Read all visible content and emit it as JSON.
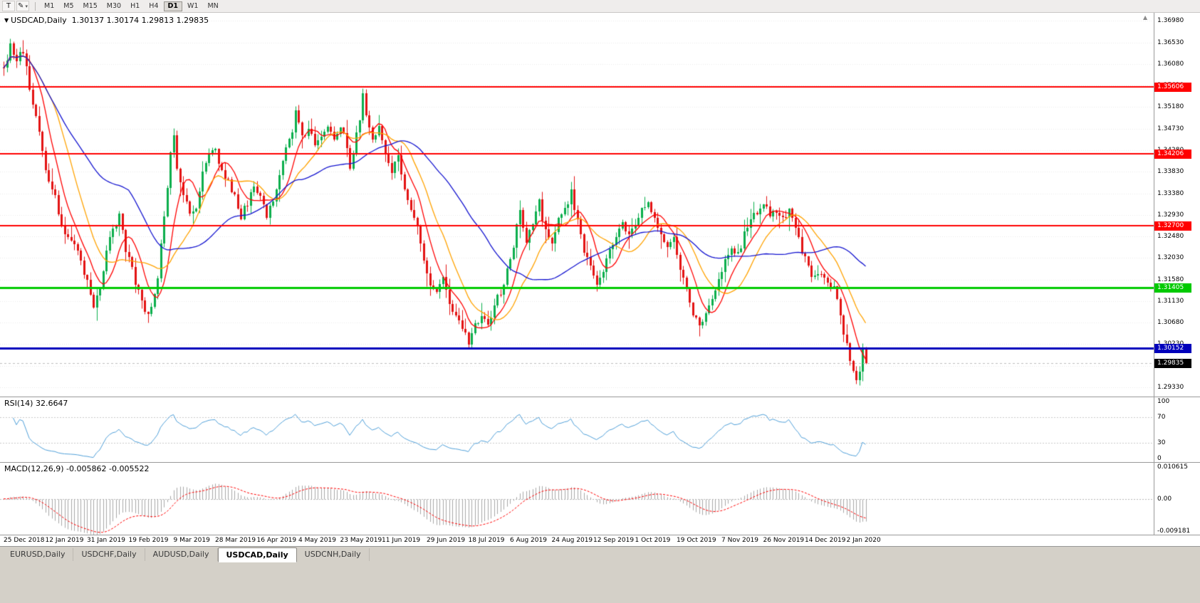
{
  "toolbar": {
    "text_tool_label": "T",
    "draw_tool_icon": "pencil-icon",
    "timeframes": [
      "M1",
      "M5",
      "M15",
      "M30",
      "H1",
      "H4",
      "D1",
      "W1",
      "MN"
    ],
    "active_timeframe": "D1"
  },
  "panes": {
    "price_title_symbol": "USDCAD,Daily",
    "price_title_ohlc": "1.30137 1.30174 1.29813 1.29835",
    "rsi_title": "RSI(14) 32.6647",
    "macd_title": "MACD(12,26,9) -0.005862 -0.005522"
  },
  "tabs": [
    {
      "label": "EURUSD,Daily",
      "active": false
    },
    {
      "label": "USDCHF,Daily",
      "active": false
    },
    {
      "label": "AUDUSD,Daily",
      "active": false
    },
    {
      "label": "USDCAD,Daily",
      "active": true
    },
    {
      "label": "USDCNH,Daily",
      "active": false
    }
  ],
  "chart_data": {
    "type": "candlestick",
    "title": "USDCAD,Daily",
    "ohlc_display": {
      "open": "1.30137",
      "high": "1.30174",
      "low": "1.29813",
      "close": "1.29835"
    },
    "bars": 270,
    "bar_spacing_px": 4.5,
    "first_bar_x": 5,
    "seed": 11,
    "y_range": [
      1.2912,
      1.3715
    ],
    "y_ticks": [
      "1.36980",
      "1.36530",
      "1.36080",
      "1.35630",
      "1.35180",
      "1.34730",
      "1.34280",
      "1.33830",
      "1.33380",
      "1.32930",
      "1.32480",
      "1.32030",
      "1.31580",
      "1.31130",
      "1.30680",
      "1.30230",
      "1.29780",
      "1.29330"
    ],
    "x_labels": [
      "25 Dec 2018",
      "12 Jan 2019",
      "31 Jan 2019",
      "19 Feb 2019",
      "9 Mar 2019",
      "28 Mar 2019",
      "16 Apr 2019",
      "4 May 2019",
      "23 May 2019",
      "11 Jun 2019",
      "29 Jun 2019",
      "18 Jul 2019",
      "6 Aug 2019",
      "24 Aug 2019",
      "12 Sep 2019",
      "1 Oct 2019",
      "19 Oct 2019",
      "7 Nov 2019",
      "26 Nov 2019",
      "14 Dec 2019",
      "2 Jan 2020"
    ],
    "up_color": "#0bae4c",
    "down_color": "#e31212",
    "close_anchors": [
      [
        0,
        1.36
      ],
      [
        2,
        1.3645
      ],
      [
        4,
        1.362
      ],
      [
        6,
        1.3638
      ],
      [
        8,
        1.356
      ],
      [
        11,
        1.3468
      ],
      [
        13,
        1.339
      ],
      [
        16,
        1.3328
      ],
      [
        19,
        1.3252
      ],
      [
        22,
        1.323
      ],
      [
        24,
        1.3198
      ],
      [
        26,
        1.315
      ],
      [
        28,
        1.31
      ],
      [
        30,
        1.3132
      ],
      [
        32,
        1.3222
      ],
      [
        34,
        1.3268
      ],
      [
        36,
        1.329
      ],
      [
        38,
        1.3222
      ],
      [
        40,
        1.318
      ],
      [
        42,
        1.313
      ],
      [
        44,
        1.3082
      ],
      [
        46,
        1.31
      ],
      [
        48,
        1.3162
      ],
      [
        50,
        1.329
      ],
      [
        52,
        1.342
      ],
      [
        53,
        1.3458
      ],
      [
        54,
        1.3382
      ],
      [
        56,
        1.334
      ],
      [
        58,
        1.3292
      ],
      [
        60,
        1.3312
      ],
      [
        62,
        1.338
      ],
      [
        64,
        1.342
      ],
      [
        66,
        1.3432
      ],
      [
        68,
        1.338
      ],
      [
        70,
        1.336
      ],
      [
        72,
        1.333
      ],
      [
        74,
        1.3292
      ],
      [
        76,
        1.332
      ],
      [
        78,
        1.335
      ],
      [
        80,
        1.333
      ],
      [
        82,
        1.3292
      ],
      [
        84,
        1.332
      ],
      [
        86,
        1.338
      ],
      [
        88,
        1.344
      ],
      [
        90,
        1.3472
      ],
      [
        91,
        1.3508
      ],
      [
        93,
        1.3452
      ],
      [
        95,
        1.347
      ],
      [
        97,
        1.3442
      ],
      [
        99,
        1.3462
      ],
      [
        101,
        1.3472
      ],
      [
        103,
        1.3452
      ],
      [
        105,
        1.348
      ],
      [
        107,
        1.344
      ],
      [
        108,
        1.3388
      ],
      [
        109,
        1.3428
      ],
      [
        111,
        1.349
      ],
      [
        112,
        1.3542
      ],
      [
        113,
        1.35
      ],
      [
        115,
        1.3452
      ],
      [
        117,
        1.348
      ],
      [
        119,
        1.342
      ],
      [
        121,
        1.3382
      ],
      [
        123,
        1.342
      ],
      [
        125,
        1.3352
      ],
      [
        127,
        1.33
      ],
      [
        129,
        1.327
      ],
      [
        131,
        1.32
      ],
      [
        133,
        1.315
      ],
      [
        135,
        1.313
      ],
      [
        137,
        1.316
      ],
      [
        139,
        1.311
      ],
      [
        141,
        1.308
      ],
      [
        143,
        1.306
      ],
      [
        145,
        1.3028
      ],
      [
        147,
        1.3058
      ],
      [
        149,
        1.308
      ],
      [
        151,
        1.306
      ],
      [
        153,
        1.311
      ],
      [
        155,
        1.313
      ],
      [
        157,
        1.318
      ],
      [
        159,
        1.323
      ],
      [
        161,
        1.33
      ],
      [
        163,
        1.3242
      ],
      [
        165,
        1.328
      ],
      [
        167,
        1.3318
      ],
      [
        169,
        1.326
      ],
      [
        171,
        1.323
      ],
      [
        173,
        1.328
      ],
      [
        175,
        1.33
      ],
      [
        177,
        1.334
      ],
      [
        179,
        1.328
      ],
      [
        181,
        1.322
      ],
      [
        183,
        1.318
      ],
      [
        185,
        1.315
      ],
      [
        187,
        1.318
      ],
      [
        189,
        1.322
      ],
      [
        191,
        1.325
      ],
      [
        193,
        1.328
      ],
      [
        195,
        1.325
      ],
      [
        197,
        1.328
      ],
      [
        199,
        1.33
      ],
      [
        201,
        1.332
      ],
      [
        203,
        1.329
      ],
      [
        205,
        1.325
      ],
      [
        207,
        1.322
      ],
      [
        209,
        1.324
      ],
      [
        211,
        1.318
      ],
      [
        213,
        1.313
      ],
      [
        215,
        1.309
      ],
      [
        217,
        1.3058
      ],
      [
        219,
        1.308
      ],
      [
        221,
        1.312
      ],
      [
        223,
        1.316
      ],
      [
        225,
        1.32
      ],
      [
        227,
        1.323
      ],
      [
        229,
        1.321
      ],
      [
        231,
        1.325
      ],
      [
        233,
        1.328
      ],
      [
        235,
        1.33
      ],
      [
        237,
        1.3318
      ],
      [
        239,
        1.329
      ],
      [
        241,
        1.33
      ],
      [
        243,
        1.3282
      ],
      [
        245,
        1.33
      ],
      [
        247,
        1.326
      ],
      [
        249,
        1.322
      ],
      [
        251,
        1.318
      ],
      [
        253,
        1.316
      ],
      [
        255,
        1.3172
      ],
      [
        257,
        1.315
      ],
      [
        259,
        1.314
      ],
      [
        261,
        1.308
      ],
      [
        263,
        1.302
      ],
      [
        264,
        1.299
      ],
      [
        265,
        1.296
      ],
      [
        266,
        1.2945
      ],
      [
        267,
        1.2965
      ],
      [
        268,
        1.3014
      ],
      [
        269,
        1.29835
      ]
    ],
    "last_bar": {
      "open": 1.30137,
      "high": 1.30174,
      "low": 1.29813,
      "close": 1.29835
    },
    "moving_averages": [
      {
        "name": "MA-fast",
        "period": 8,
        "color": "#ff0000"
      },
      {
        "name": "MA-mid",
        "period": 16,
        "color": "#ffa200"
      },
      {
        "name": "MA-slow",
        "period": 40,
        "color": "#1414cf"
      }
    ],
    "horizontal_lines": [
      {
        "value": 1.35606,
        "label": "1.35606",
        "color": "#ff0000",
        "width": 2
      },
      {
        "value": 1.34206,
        "label": "1.34206",
        "color": "#ff0000",
        "width": 2
      },
      {
        "value": 1.327,
        "label": "1.32700",
        "color": "#ff0000",
        "width": 2
      },
      {
        "value": 1.31405,
        "label": "1.31405",
        "color": "#00ca00",
        "width": 3
      },
      {
        "value": 1.30152,
        "label": "1.30152",
        "color": "#0000bb",
        "width": 3
      }
    ],
    "current_price": {
      "value": 1.29835,
      "label": "1.29835",
      "badge_color": "#000000"
    },
    "rsi": {
      "label": "RSI(14) 32.6647",
      "period": 14,
      "value": 32.6647,
      "levels": [
        70,
        30
      ],
      "axis_labels": [
        "100",
        "70",
        "30",
        "0"
      ],
      "axis_values": [
        100,
        70,
        30,
        0
      ],
      "range": [
        0,
        100
      ],
      "color": "#4f9fd8"
    },
    "macd": {
      "label": "MACD(12,26,9) -0.005862 -0.005522",
      "fast": 12,
      "slow": 26,
      "signal_period": 9,
      "main_value": -0.005862,
      "signal_value": -0.005522,
      "axis_labels": [
        "0.010615",
        "0.00",
        "-0.009181"
      ],
      "axis_max": 0.010615,
      "axis_min": -0.009181,
      "histogram_color": "#a6a6a6",
      "signal_color": "#ff0000"
    }
  }
}
